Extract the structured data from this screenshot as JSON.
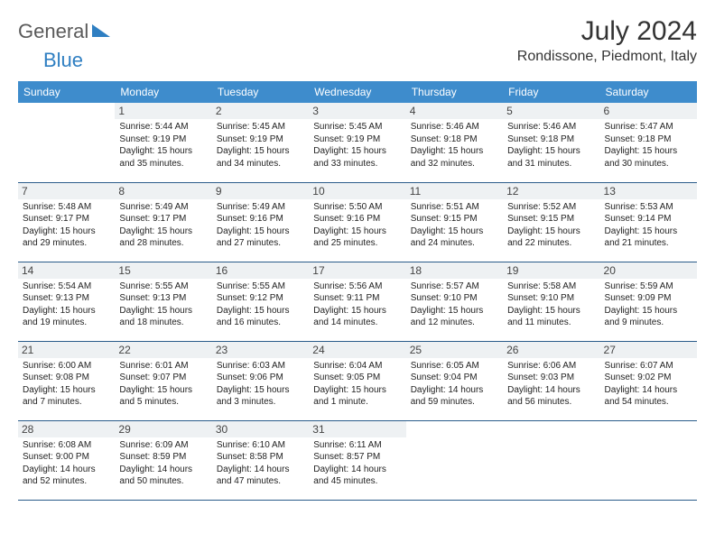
{
  "logo": {
    "part1": "General",
    "part2": "Blue"
  },
  "title": "July 2024",
  "location": "Rondissone, Piedmont, Italy",
  "colors": {
    "header_bg": "#3e8ccc",
    "header_text": "#ffffff",
    "border": "#2a5c8a",
    "daynum_bg": "#eef1f3",
    "logo_gray": "#5a5a5a",
    "logo_blue": "#2f7fc2"
  },
  "weekdays": [
    "Sunday",
    "Monday",
    "Tuesday",
    "Wednesday",
    "Thursday",
    "Friday",
    "Saturday"
  ],
  "weeks": [
    [
      null,
      {
        "n": "1",
        "sr": "5:44 AM",
        "ss": "9:19 PM",
        "dl": "15 hours and 35 minutes."
      },
      {
        "n": "2",
        "sr": "5:45 AM",
        "ss": "9:19 PM",
        "dl": "15 hours and 34 minutes."
      },
      {
        "n": "3",
        "sr": "5:45 AM",
        "ss": "9:19 PM",
        "dl": "15 hours and 33 minutes."
      },
      {
        "n": "4",
        "sr": "5:46 AM",
        "ss": "9:18 PM",
        "dl": "15 hours and 32 minutes."
      },
      {
        "n": "5",
        "sr": "5:46 AM",
        "ss": "9:18 PM",
        "dl": "15 hours and 31 minutes."
      },
      {
        "n": "6",
        "sr": "5:47 AM",
        "ss": "9:18 PM",
        "dl": "15 hours and 30 minutes."
      }
    ],
    [
      {
        "n": "7",
        "sr": "5:48 AM",
        "ss": "9:17 PM",
        "dl": "15 hours and 29 minutes."
      },
      {
        "n": "8",
        "sr": "5:49 AM",
        "ss": "9:17 PM",
        "dl": "15 hours and 28 minutes."
      },
      {
        "n": "9",
        "sr": "5:49 AM",
        "ss": "9:16 PM",
        "dl": "15 hours and 27 minutes."
      },
      {
        "n": "10",
        "sr": "5:50 AM",
        "ss": "9:16 PM",
        "dl": "15 hours and 25 minutes."
      },
      {
        "n": "11",
        "sr": "5:51 AM",
        "ss": "9:15 PM",
        "dl": "15 hours and 24 minutes."
      },
      {
        "n": "12",
        "sr": "5:52 AM",
        "ss": "9:15 PM",
        "dl": "15 hours and 22 minutes."
      },
      {
        "n": "13",
        "sr": "5:53 AM",
        "ss": "9:14 PM",
        "dl": "15 hours and 21 minutes."
      }
    ],
    [
      {
        "n": "14",
        "sr": "5:54 AM",
        "ss": "9:13 PM",
        "dl": "15 hours and 19 minutes."
      },
      {
        "n": "15",
        "sr": "5:55 AM",
        "ss": "9:13 PM",
        "dl": "15 hours and 18 minutes."
      },
      {
        "n": "16",
        "sr": "5:55 AM",
        "ss": "9:12 PM",
        "dl": "15 hours and 16 minutes."
      },
      {
        "n": "17",
        "sr": "5:56 AM",
        "ss": "9:11 PM",
        "dl": "15 hours and 14 minutes."
      },
      {
        "n": "18",
        "sr": "5:57 AM",
        "ss": "9:10 PM",
        "dl": "15 hours and 12 minutes."
      },
      {
        "n": "19",
        "sr": "5:58 AM",
        "ss": "9:10 PM",
        "dl": "15 hours and 11 minutes."
      },
      {
        "n": "20",
        "sr": "5:59 AM",
        "ss": "9:09 PM",
        "dl": "15 hours and 9 minutes."
      }
    ],
    [
      {
        "n": "21",
        "sr": "6:00 AM",
        "ss": "9:08 PM",
        "dl": "15 hours and 7 minutes."
      },
      {
        "n": "22",
        "sr": "6:01 AM",
        "ss": "9:07 PM",
        "dl": "15 hours and 5 minutes."
      },
      {
        "n": "23",
        "sr": "6:03 AM",
        "ss": "9:06 PM",
        "dl": "15 hours and 3 minutes."
      },
      {
        "n": "24",
        "sr": "6:04 AM",
        "ss": "9:05 PM",
        "dl": "15 hours and 1 minute."
      },
      {
        "n": "25",
        "sr": "6:05 AM",
        "ss": "9:04 PM",
        "dl": "14 hours and 59 minutes."
      },
      {
        "n": "26",
        "sr": "6:06 AM",
        "ss": "9:03 PM",
        "dl": "14 hours and 56 minutes."
      },
      {
        "n": "27",
        "sr": "6:07 AM",
        "ss": "9:02 PM",
        "dl": "14 hours and 54 minutes."
      }
    ],
    [
      {
        "n": "28",
        "sr": "6:08 AM",
        "ss": "9:00 PM",
        "dl": "14 hours and 52 minutes."
      },
      {
        "n": "29",
        "sr": "6:09 AM",
        "ss": "8:59 PM",
        "dl": "14 hours and 50 minutes."
      },
      {
        "n": "30",
        "sr": "6:10 AM",
        "ss": "8:58 PM",
        "dl": "14 hours and 47 minutes."
      },
      {
        "n": "31",
        "sr": "6:11 AM",
        "ss": "8:57 PM",
        "dl": "14 hours and 45 minutes."
      },
      null,
      null,
      null
    ]
  ],
  "labels": {
    "sunrise": "Sunrise:",
    "sunset": "Sunset:",
    "daylight": "Daylight:"
  }
}
